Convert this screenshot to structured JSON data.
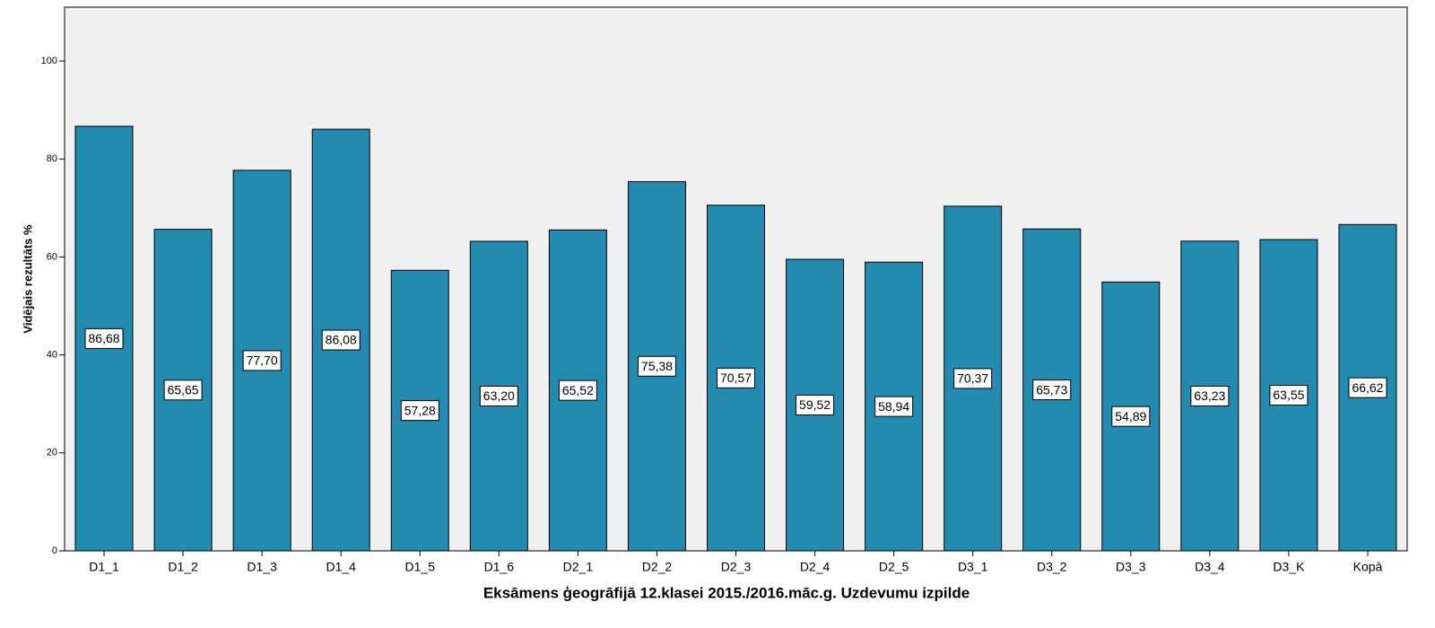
{
  "chart_data": {
    "type": "bar",
    "xlabel": "Eksāmens ģeogrāfijā 12.klasei 2015./2016.māc.g. Uzdevumu izpilde",
    "ylabel": "Vidējais rezultāts %",
    "categories": [
      "D1_1",
      "D1_2",
      "D1_3",
      "D1_4",
      "D1_5",
      "D1_6",
      "D2_1",
      "D2_2",
      "D2_3",
      "D2_4",
      "D2_5",
      "D3_1",
      "D3_2",
      "D3_3",
      "D3_4",
      "D3_K",
      "Kopā"
    ],
    "values": [
      86.68,
      65.65,
      77.7,
      86.08,
      57.28,
      63.2,
      65.52,
      75.38,
      70.57,
      59.52,
      58.94,
      70.37,
      65.73,
      54.89,
      63.23,
      63.55,
      66.62
    ],
    "value_labels": [
      "86,68",
      "65,65",
      "77,70",
      "86,08",
      "57,28",
      "63,20",
      "65,52",
      "75,38",
      "70,57",
      "59,52",
      "58,94",
      "70,37",
      "65,73",
      "54,89",
      "63,23",
      "63,55",
      "66,62"
    ],
    "color": "#238ab0",
    "ylim": [
      0,
      111
    ],
    "yticks": [
      0,
      20,
      40,
      60,
      80,
      100
    ],
    "grid": false
  }
}
